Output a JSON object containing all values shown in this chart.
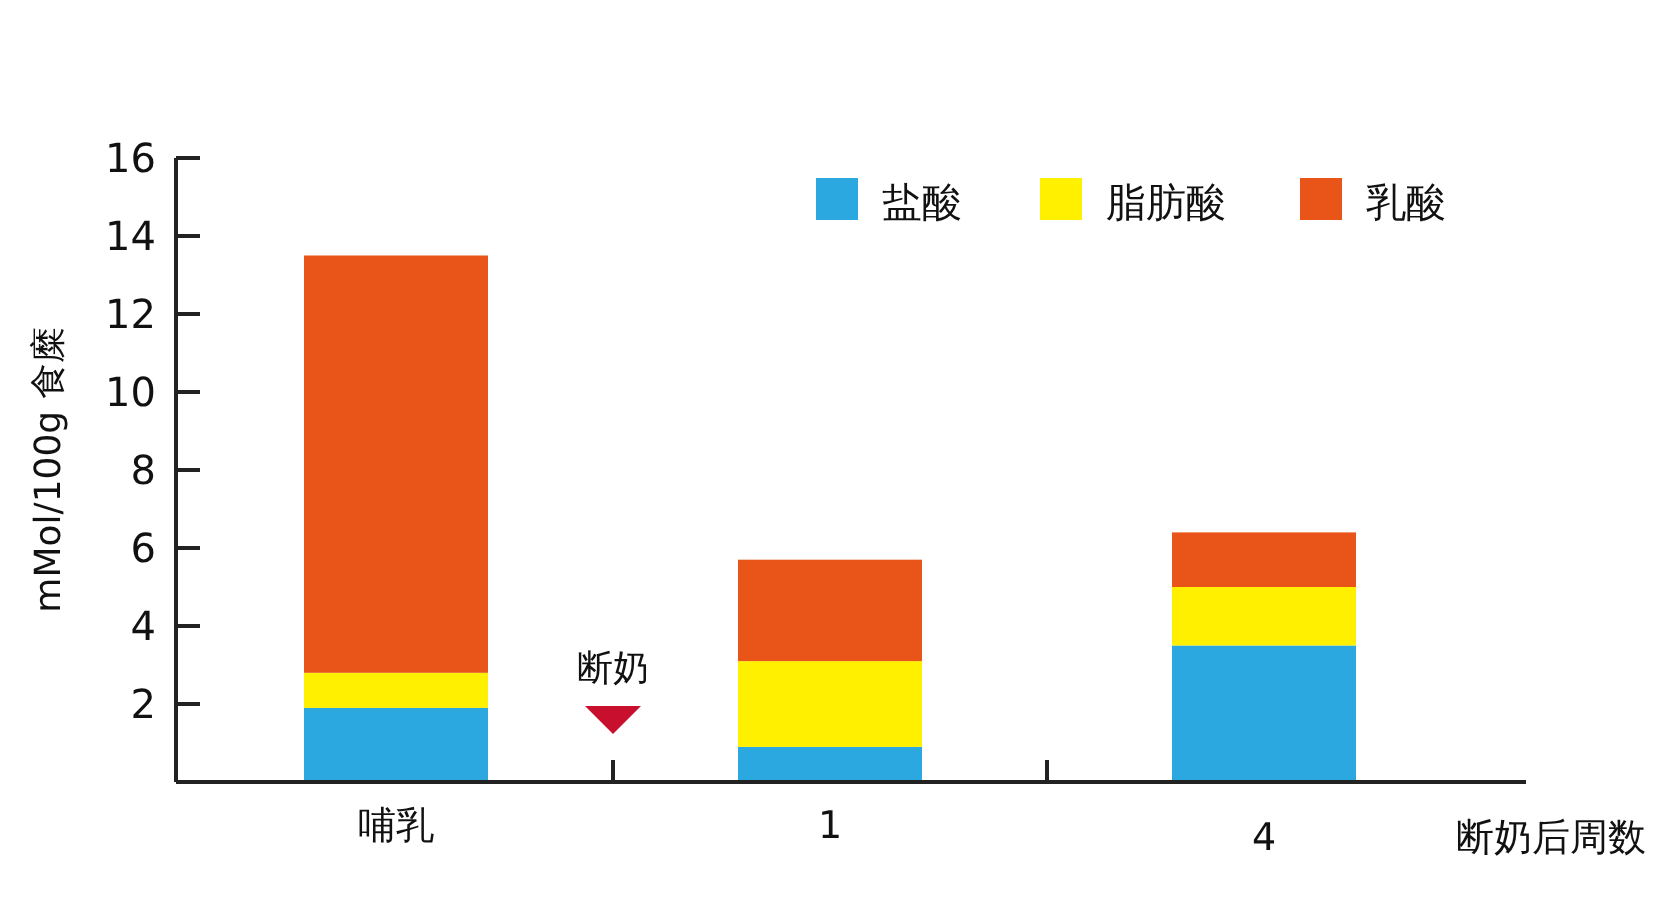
{
  "chart_data": {
    "type": "bar",
    "stacked": true,
    "ylabel": "mMol/100g 食糜",
    "xlabel": "断奶后周数",
    "categories": [
      "哺乳",
      "1",
      "4"
    ],
    "series": [
      {
        "name": "盐酸",
        "color": "#2ca8e0",
        "values": [
          1.9,
          0.9,
          3.5
        ]
      },
      {
        "name": "脂肪酸",
        "color": "#fff000",
        "values": [
          0.9,
          2.2,
          1.5
        ]
      },
      {
        "name": "乳酸",
        "color": "#e95518",
        "values": [
          10.7,
          2.6,
          1.4
        ]
      }
    ],
    "ylim": [
      0,
      16
    ],
    "yticks": [
      2,
      4,
      6,
      8,
      10,
      12,
      14,
      16
    ],
    "legend": "top right",
    "grid": false,
    "annotations": [
      "断奶"
    ]
  }
}
